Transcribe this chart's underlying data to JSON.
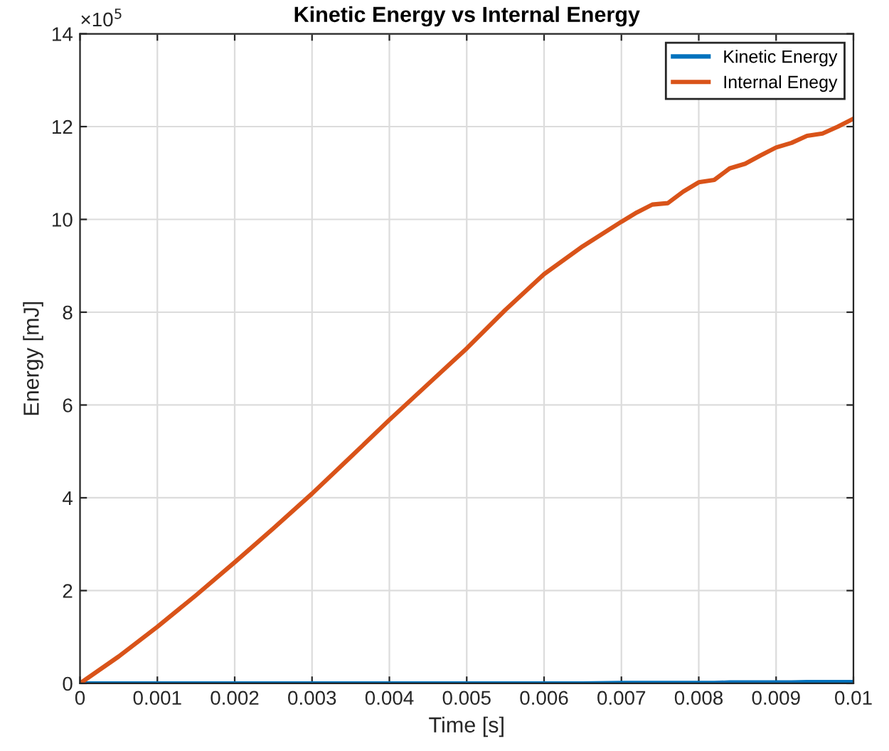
{
  "chart_data": {
    "type": "line",
    "title": "Kinetic Energy vs Internal Energy",
    "xlabel": "Time [s]",
    "ylabel": "Energy [mJ]",
    "annotations": [
      "×10$^{5}$"
    ],
    "xlim": [
      0,
      0.01
    ],
    "ylim": [
      0,
      14
    ],
    "xticks": [
      0,
      0.001,
      0.002,
      0.003,
      0.004,
      0.005,
      0.006,
      0.007,
      0.008,
      0.009,
      0.01
    ],
    "yticks": [
      0,
      2,
      4,
      6,
      8,
      10,
      12,
      14
    ],
    "x": [
      0,
      0.0005,
      0.001,
      0.0015,
      0.002,
      0.0025,
      0.003,
      0.0035,
      0.004,
      0.0045,
      0.005,
      0.0055,
      0.006,
      0.0065,
      0.007,
      0.0072,
      0.0074,
      0.0076,
      0.0078,
      0.008,
      0.0082,
      0.0084,
      0.0086,
      0.0088,
      0.009,
      0.0092,
      0.0094,
      0.0096,
      0.0098,
      0.01
    ],
    "series": [
      {
        "name": "Kinetic Energy",
        "color": "#0072bd",
        "values": [
          0,
          0,
          0,
          0,
          0,
          0,
          0,
          0,
          0,
          0,
          0,
          0,
          0,
          0,
          0.01,
          0.01,
          0.01,
          0.01,
          0.01,
          0.01,
          0.01,
          0.02,
          0.02,
          0.02,
          0.02,
          0.02,
          0.03,
          0.03,
          0.03,
          0.03
        ]
      },
      {
        "name": "Internal Enegy",
        "color": "#d95319",
        "values": [
          0,
          0.58,
          1.22,
          1.9,
          2.61,
          3.34,
          4.09,
          4.88,
          5.68,
          6.45,
          7.22,
          8.05,
          8.82,
          9.42,
          9.95,
          10.15,
          10.32,
          10.35,
          10.6,
          10.8,
          10.85,
          11.1,
          11.2,
          11.38,
          11.55,
          11.65,
          11.8,
          11.85,
          12.0,
          12.17
        ]
      }
    ],
    "grid": true,
    "legend": "top right",
    "line_style": "solid",
    "marker": "none"
  }
}
